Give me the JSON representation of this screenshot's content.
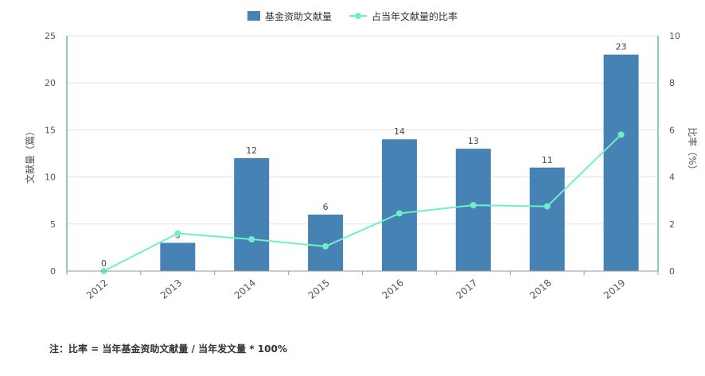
{
  "chart_data": {
    "type": "bar",
    "categories": [
      "2012",
      "2013",
      "2014",
      "2015",
      "2016",
      "2017",
      "2018",
      "2019"
    ],
    "series": [
      {
        "name": "基金资助文献量",
        "type": "bar",
        "axis": "left",
        "values": [
          0,
          3,
          12,
          6,
          14,
          13,
          11,
          23
        ],
        "color": "#4682b4",
        "show_labels": true
      },
      {
        "name": "占当年文献量的比率",
        "type": "line",
        "axis": "right",
        "values": [
          0,
          1.6,
          1.35,
          1.05,
          2.45,
          2.8,
          2.75,
          5.8
        ],
        "color": "#6ef0c4",
        "show_labels": false
      }
    ],
    "ylabel": "文献量（篇）",
    "ylim": [
      0,
      25
    ],
    "yticks": [
      "0",
      "5",
      "10",
      "15",
      "20",
      "25"
    ],
    "y2label": "比率（%）",
    "y2lim": [
      0,
      10
    ],
    "y2ticks": [
      "0",
      "2",
      "4",
      "6",
      "8",
      "10"
    ],
    "grid": true,
    "legend_position": "top-center",
    "axis_color": "#139d78"
  },
  "note": "注：比率 = 当年基金资助文献量 / 当年发文量 * 100%"
}
